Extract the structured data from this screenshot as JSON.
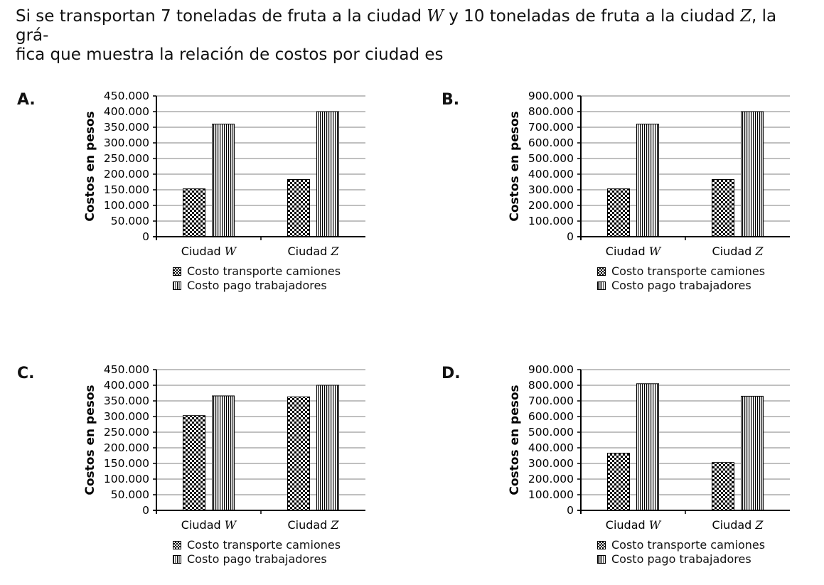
{
  "question": {
    "part1": "Si se transportan 7 toneladas de fruta a la ciudad ",
    "var1": "W",
    "part2": " y 10 toneladas de fruta a la ciudad ",
    "var2": "Z",
    "part3": ", la grá-",
    "line2": "fica que muestra la relación de costos por ciudad es"
  },
  "legend": {
    "series1": "Costo transporte camiones",
    "series2": "Costo pago trabajadores"
  },
  "options": [
    "A.",
    "B.",
    "C.",
    "D."
  ],
  "chart_data": [
    {
      "type": "bar",
      "option": "A.",
      "ylabel": "Costos en pesos",
      "ylim": [
        0,
        450000
      ],
      "ytick_labels": [
        "0",
        "50.000",
        "100.000",
        "150.000",
        "200.000",
        "250.000",
        "300.000",
        "350.000",
        "400.000",
        "450.000"
      ],
      "ytick_values": [
        0,
        50000,
        100000,
        150000,
        200000,
        250000,
        300000,
        350000,
        400000,
        450000
      ],
      "categories": [
        [
          "Ciudad ",
          "W"
        ],
        [
          "Ciudad ",
          "Z"
        ]
      ],
      "series": [
        {
          "name": "Costo transporte camiones",
          "pattern": "checker",
          "values": [
            153000,
            183000
          ]
        },
        {
          "name": "Costo pago trabajadores",
          "pattern": "stripes",
          "values": [
            360000,
            400000
          ]
        }
      ],
      "grid": true
    },
    {
      "type": "bar",
      "option": "B.",
      "ylabel": "Costos en pesos",
      "ylim": [
        0,
        900000
      ],
      "ytick_labels": [
        "0",
        "100.000",
        "200.000",
        "300.000",
        "400.000",
        "500.000",
        "600.000",
        "700.000",
        "800.000",
        "900.000"
      ],
      "ytick_values": [
        0,
        100000,
        200000,
        300000,
        400000,
        500000,
        600000,
        700000,
        800000,
        900000
      ],
      "categories": [
        [
          "Ciudad ",
          "W"
        ],
        [
          "Ciudad ",
          "Z"
        ]
      ],
      "series": [
        {
          "name": "Costo transporte camiones",
          "pattern": "checker",
          "values": [
            306000,
            366000
          ]
        },
        {
          "name": "Costo pago trabajadores",
          "pattern": "stripes",
          "values": [
            720000,
            800000
          ]
        }
      ],
      "grid": true
    },
    {
      "type": "bar",
      "option": "C.",
      "ylabel": "Costos en pesos",
      "ylim": [
        0,
        450000
      ],
      "ytick_labels": [
        "0",
        "50.000",
        "100.000",
        "150.000",
        "200.000",
        "250.000",
        "300.000",
        "350.000",
        "400.000",
        "450.000"
      ],
      "ytick_values": [
        0,
        50000,
        100000,
        150000,
        200000,
        250000,
        300000,
        350000,
        400000,
        450000
      ],
      "categories": [
        [
          "Ciudad ",
          "W"
        ],
        [
          "Ciudad ",
          "Z"
        ]
      ],
      "series": [
        {
          "name": "Costo transporte camiones",
          "pattern": "checker",
          "values": [
            303000,
            363000
          ]
        },
        {
          "name": "Costo pago trabajadores",
          "pattern": "stripes",
          "values": [
            366000,
            400000
          ]
        }
      ],
      "grid": true
    },
    {
      "type": "bar",
      "option": "D.",
      "ylabel": "Costos en pesos",
      "ylim": [
        0,
        900000
      ],
      "ytick_labels": [
        "0",
        "100.000",
        "200.000",
        "300.000",
        "400.000",
        "500.000",
        "600.000",
        "700.000",
        "800.000",
        "900.000"
      ],
      "ytick_values": [
        0,
        100000,
        200000,
        300000,
        400000,
        500000,
        600000,
        700000,
        800000,
        900000
      ],
      "categories": [
        [
          "Ciudad ",
          "W"
        ],
        [
          "Ciudad ",
          "Z"
        ]
      ],
      "series": [
        {
          "name": "Costo transporte camiones",
          "pattern": "checker",
          "values": [
            366000,
            306000
          ]
        },
        {
          "name": "Costo pago trabajadores",
          "pattern": "stripes",
          "values": [
            810000,
            730000
          ]
        }
      ],
      "grid": true
    }
  ]
}
